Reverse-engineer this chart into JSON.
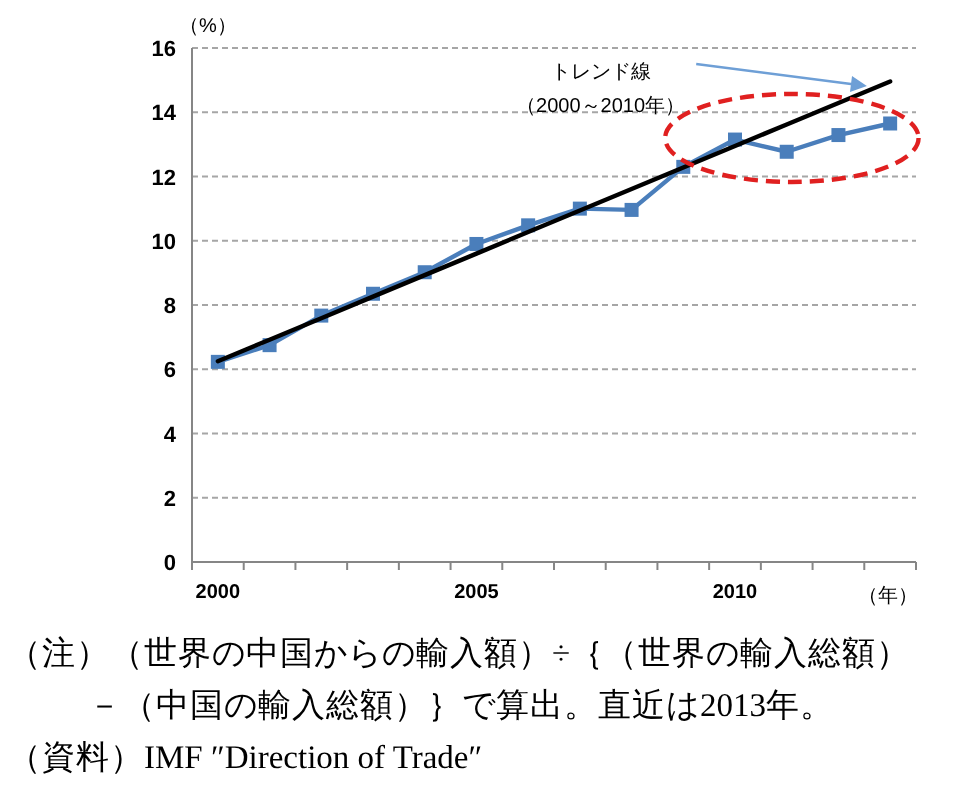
{
  "chart_data": {
    "type": "line",
    "xlabel": "（年）",
    "ylabel": "（%）",
    "categories": [
      "2000",
      null,
      null,
      null,
      null,
      "2005",
      null,
      null,
      null,
      null,
      "2010",
      null,
      null,
      null
    ],
    "series": [
      {
        "color": "#4a7ebb",
        "marker": "square",
        "values": [
          6.23,
          6.75,
          7.67,
          8.35,
          9.02,
          9.9,
          10.48,
          11.0,
          10.96,
          12.3,
          13.15,
          12.77,
          13.29,
          13.65
        ]
      },
      {
        "color": "#000000",
        "marker": "none",
        "values": [
          6.25,
          6.92,
          7.59,
          8.26,
          8.93,
          9.6,
          10.27,
          10.94,
          11.61,
          12.28,
          12.95,
          13.62,
          14.29,
          14.96
        ]
      }
    ],
    "ylim": [
      0,
      16
    ],
    "yticks": [
      0,
      2,
      4,
      6,
      8,
      10,
      12,
      14,
      16
    ],
    "grid": "y",
    "line_style": "solid",
    "annotations": [
      "トレンド線（2000～2010年）",
      "（注）（世界の中国からの輸入額）÷｛（世界の輸入総額）－（中国の輸入総額）｝で算出。直近は2013年。",
      "（資料）IMF ″Direction of Trade″"
    ]
  }
}
